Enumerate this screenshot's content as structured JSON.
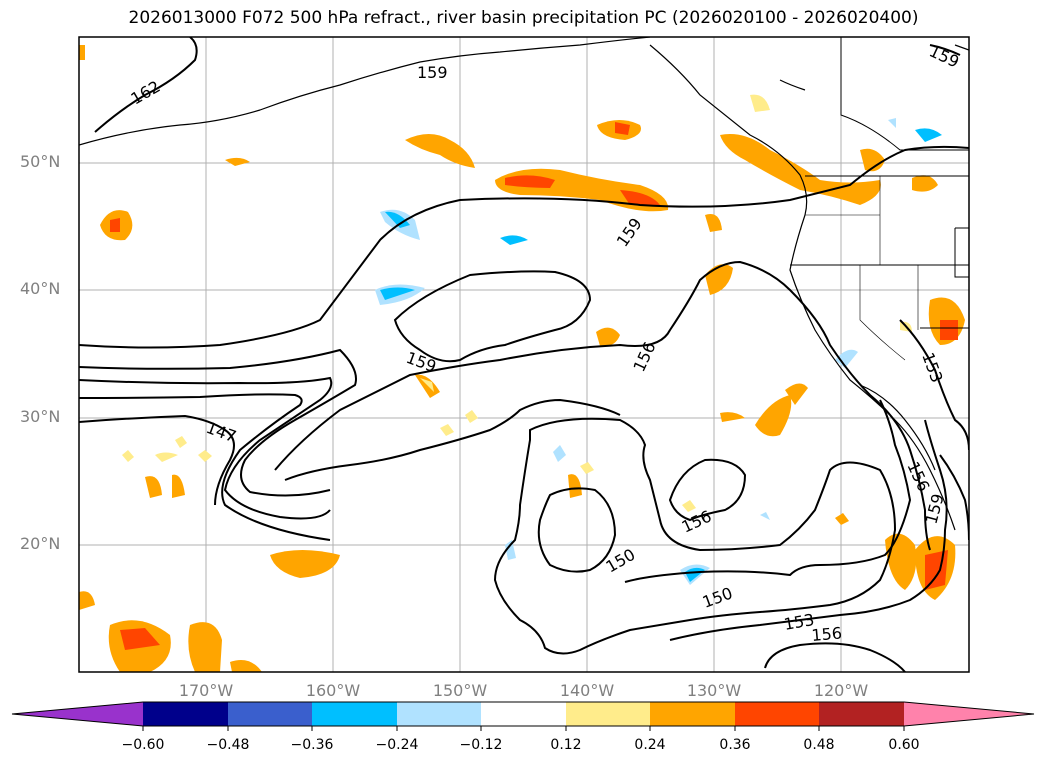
{
  "title": "2026013000 F072 500 hPa refract., river basin precipitation PC (2026020100 - 2026020400)",
  "map": {
    "lat_labels": [
      "50°N",
      "40°N",
      "30°N",
      "20°N"
    ],
    "lon_labels": [
      "170°W",
      "160°W",
      "150°W",
      "140°W",
      "130°W",
      "120°W"
    ],
    "contour_labels": [
      "162",
      "159",
      "159",
      "159",
      "159",
      "156",
      "147",
      "156",
      "150",
      "150",
      "153",
      "156",
      "153",
      "156",
      "159"
    ],
    "colors": {
      "ocean": "#ffffff",
      "grid": "#b0b0b0",
      "contour": "#000000"
    }
  },
  "colorbar": {
    "ticks": [
      "−0.60",
      "−0.48",
      "−0.36",
      "−0.24",
      "−0.12",
      "0.12",
      "0.24",
      "0.36",
      "0.48",
      "0.60"
    ],
    "colors": [
      "#9932cc",
      "#00008b",
      "#3a5fcd",
      "#00bfff",
      "#b0e2ff",
      "#ffffff",
      "#ffec8b",
      "#ffa500",
      "#ff4500",
      "#b22222",
      "#ff82ab"
    ]
  }
}
